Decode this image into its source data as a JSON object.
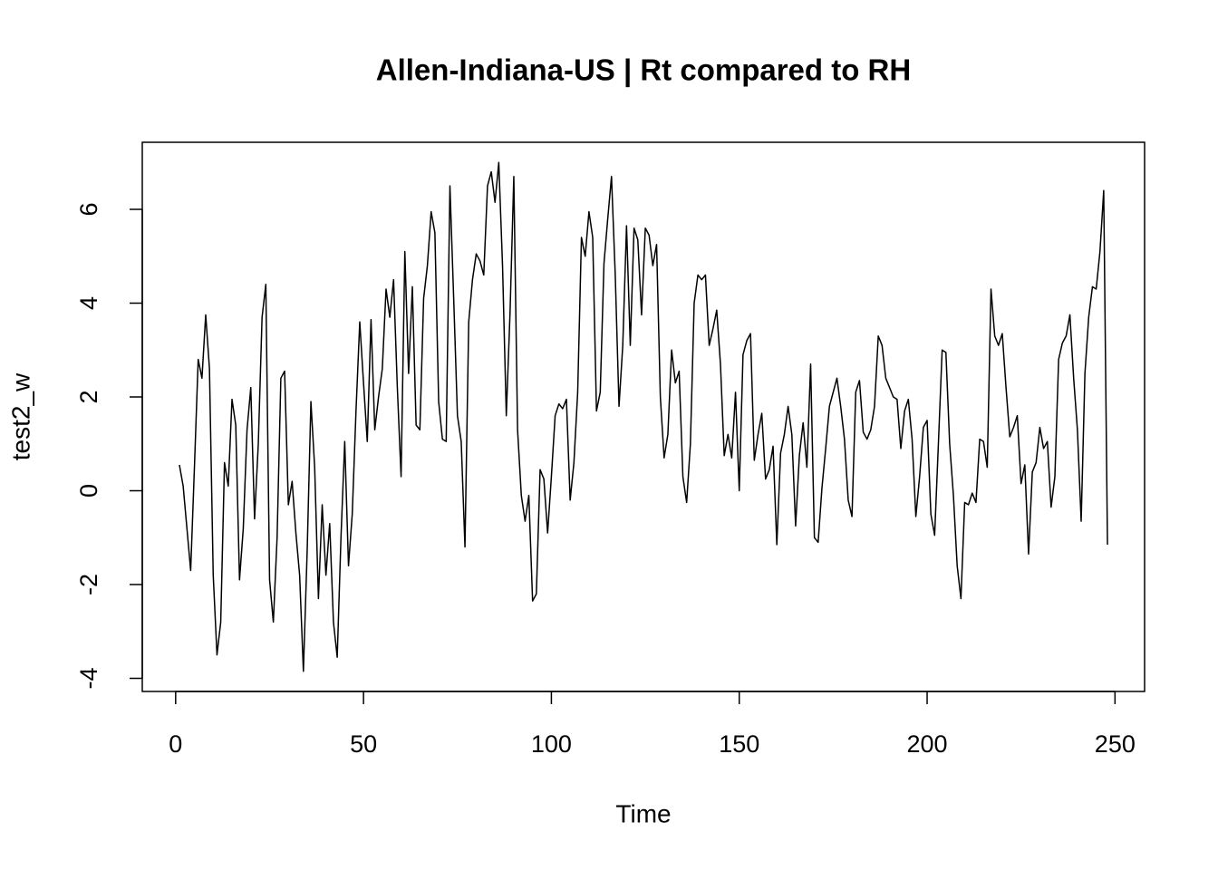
{
  "chart_data": {
    "type": "line",
    "title": "Allen-Indiana-US | Rt compared to RH",
    "xlabel": "Time",
    "ylabel": "test2_w",
    "color": "#000000",
    "x": [
      1,
      2,
      3,
      4,
      5,
      6,
      7,
      8,
      9,
      10,
      11,
      12,
      13,
      14,
      15,
      16,
      17,
      18,
      19,
      20,
      21,
      22,
      23,
      24,
      25,
      26,
      27,
      28,
      29,
      30,
      31,
      32,
      33,
      34,
      35,
      36,
      37,
      38,
      39,
      40,
      41,
      42,
      43,
      44,
      45,
      46,
      47,
      48,
      49,
      50,
      51,
      52,
      53,
      54,
      55,
      56,
      57,
      58,
      59,
      60,
      61,
      62,
      63,
      64,
      65,
      66,
      67,
      68,
      69,
      70,
      71,
      72,
      73,
      74,
      75,
      76,
      77,
      78,
      79,
      80,
      81,
      82,
      83,
      84,
      85,
      86,
      87,
      88,
      89,
      90,
      91,
      92,
      93,
      94,
      95,
      96,
      97,
      98,
      99,
      100,
      101,
      102,
      103,
      104,
      105,
      106,
      107,
      108,
      109,
      110,
      111,
      112,
      113,
      114,
      115,
      116,
      117,
      118,
      119,
      120,
      121,
      122,
      123,
      124,
      125,
      126,
      127,
      128,
      129,
      130,
      131,
      132,
      133,
      134,
      135,
      136,
      137,
      138,
      139,
      140,
      141,
      142,
      143,
      144,
      145,
      146,
      147,
      148,
      149,
      150,
      151,
      152,
      153,
      154,
      155,
      156,
      157,
      158,
      159,
      160,
      161,
      162,
      163,
      164,
      165,
      166,
      167,
      168,
      169,
      170,
      171,
      172,
      173,
      174,
      175,
      176,
      177,
      178,
      179,
      180,
      181,
      182,
      183,
      184,
      185,
      186,
      187,
      188,
      189,
      190,
      191,
      192,
      193,
      194,
      195,
      196,
      197,
      198,
      199,
      200,
      201,
      202,
      203,
      204,
      205,
      206,
      207,
      208,
      209,
      210,
      211,
      212,
      213,
      214,
      215,
      216,
      217,
      218,
      219,
      220,
      221,
      222,
      223,
      224,
      225,
      226,
      227,
      228,
      229,
      230,
      231,
      232,
      233,
      234,
      235,
      236,
      237,
      238,
      239,
      240,
      241,
      242,
      243,
      244,
      245,
      246,
      247,
      248
    ],
    "values": [
      0.55,
      0.1,
      -0.8,
      -1.7,
      0.5,
      2.8,
      2.4,
      3.75,
      2.6,
      -1.8,
      -3.5,
      -2.8,
      0.6,
      0.1,
      1.95,
      1.4,
      -1.9,
      -0.8,
      1.3,
      2.2,
      -0.6,
      1.0,
      3.7,
      4.4,
      -1.9,
      -2.8,
      -1.0,
      2.4,
      2.55,
      -0.3,
      0.2,
      -0.9,
      -1.8,
      -3.85,
      -1.3,
      1.9,
      0.5,
      -2.3,
      -0.3,
      -1.8,
      -0.7,
      -2.8,
      -3.55,
      -1.0,
      1.05,
      -1.6,
      -0.5,
      1.7,
      3.6,
      2.3,
      1.05,
      3.65,
      1.3,
      2.0,
      2.6,
      4.3,
      3.7,
      4.5,
      2.2,
      0.3,
      5.1,
      2.5,
      4.35,
      1.4,
      1.3,
      4.1,
      4.8,
      5.95,
      5.5,
      1.9,
      1.1,
      1.05,
      6.5,
      4.1,
      1.6,
      1.05,
      -1.2,
      3.6,
      4.5,
      5.05,
      4.9,
      4.6,
      6.5,
      6.8,
      6.15,
      7.0,
      4.8,
      1.6,
      3.8,
      6.7,
      1.3,
      -0.1,
      -0.65,
      -0.1,
      -2.35,
      -2.2,
      0.45,
      0.25,
      -0.9,
      0.3,
      1.6,
      1.85,
      1.75,
      1.95,
      -0.2,
      0.6,
      2.1,
      5.4,
      5.0,
      5.95,
      5.4,
      1.7,
      2.1,
      4.85,
      5.8,
      6.7,
      4.6,
      1.8,
      3.1,
      5.65,
      3.1,
      5.6,
      5.35,
      3.75,
      5.6,
      5.45,
      4.8,
      5.25,
      2.0,
      0.7,
      1.2,
      3.0,
      2.3,
      2.55,
      0.3,
      -0.25,
      1.0,
      4.0,
      4.6,
      4.5,
      4.6,
      3.1,
      3.45,
      3.85,
      2.7,
      0.75,
      1.2,
      0.7,
      2.1,
      0.0,
      2.9,
      3.2,
      3.35,
      0.65,
      1.2,
      1.65,
      0.25,
      0.45,
      0.95,
      -1.15,
      0.8,
      1.2,
      1.8,
      1.2,
      -0.75,
      0.75,
      1.45,
      0.5,
      2.7,
      -1.0,
      -1.1,
      0.05,
      0.9,
      1.8,
      2.1,
      2.4,
      1.8,
      1.1,
      -0.2,
      -0.55,
      2.1,
      2.35,
      1.25,
      1.1,
      1.3,
      1.8,
      3.3,
      3.1,
      2.4,
      2.2,
      2.0,
      1.95,
      0.9,
      1.7,
      1.95,
      1.1,
      -0.55,
      0.3,
      1.35,
      1.5,
      -0.5,
      -0.95,
      1.0,
      3.0,
      2.95,
      1.0,
      -0.1,
      -1.6,
      -2.3,
      -0.25,
      -0.3,
      -0.05,
      -0.25,
      1.1,
      1.05,
      0.5,
      4.3,
      3.3,
      3.1,
      3.35,
      2.2,
      1.15,
      1.35,
      1.6,
      0.15,
      0.55,
      -1.35,
      0.4,
      0.6,
      1.35,
      0.9,
      1.05,
      -0.35,
      0.3,
      2.8,
      3.15,
      3.3,
      3.75,
      2.4,
      1.3,
      -0.65,
      2.5,
      3.7,
      4.35,
      4.3,
      5.1,
      6.4,
      -1.15
    ],
    "xlim": [
      -8.88,
      257.88
    ],
    "ylim": [
      -4.28,
      7.43
    ],
    "xticks": [
      0,
      50,
      100,
      150,
      200,
      250
    ],
    "yticks": [
      -4,
      -2,
      0,
      2,
      4,
      6
    ]
  }
}
